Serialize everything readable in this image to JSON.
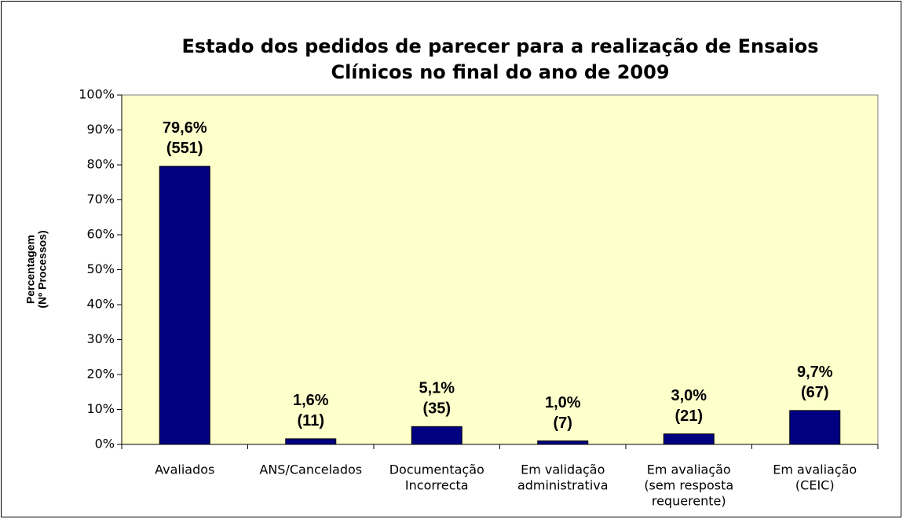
{
  "chart_data": {
    "type": "bar",
    "title": [
      "Estado dos pedidos de parecer para a realização de Ensaios",
      "Clínicos no final do ano de 2009"
    ],
    "ylabel": [
      "Percentagem",
      "(Nº Processos)"
    ],
    "categories": [
      [
        "Avaliados"
      ],
      [
        "ANS/Cancelados"
      ],
      [
        "Documentação",
        "Incorrecta"
      ],
      [
        "Em validação",
        "administrativa"
      ],
      [
        "Em avaliação",
        "(sem resposta",
        "requerente)"
      ],
      [
        "Em avaliação",
        "(CEIC)"
      ]
    ],
    "values": [
      79.6,
      1.6,
      5.1,
      1.0,
      3.0,
      9.7
    ],
    "value_labels": [
      "79,6%",
      "1,6%",
      "5,1%",
      "1,0%",
      "3,0%",
      "9,7%"
    ],
    "count_labels": [
      "(551)",
      "(11)",
      "(35)",
      "(7)",
      "(21)",
      "(67)"
    ],
    "color": "#000080",
    "ylim": [
      0,
      100
    ],
    "yticks": [
      {
        "value": 0,
        "label": "0%"
      },
      {
        "value": 10,
        "label": "10%"
      },
      {
        "value": 20,
        "label": "20%"
      },
      {
        "value": 30,
        "label": "30%"
      },
      {
        "value": 40,
        "label": "40%"
      },
      {
        "value": 50,
        "label": "50%"
      },
      {
        "value": 60,
        "label": "60%"
      },
      {
        "value": 70,
        "label": "70%"
      },
      {
        "value": 80,
        "label": "80%"
      },
      {
        "value": 90,
        "label": "90%"
      },
      {
        "value": 100,
        "label": "100%"
      }
    ]
  }
}
